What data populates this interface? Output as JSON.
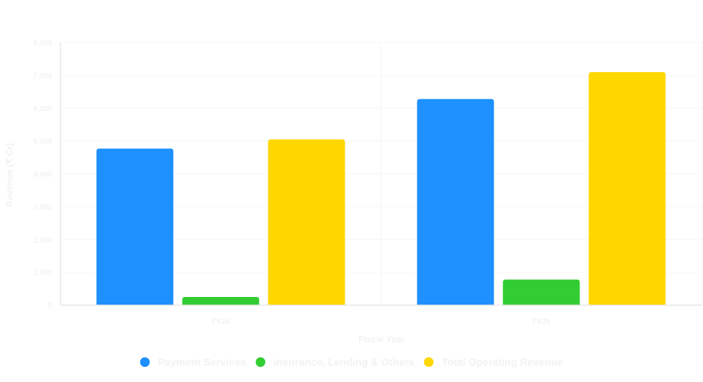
{
  "chart_data": {
    "type": "bar",
    "title": "",
    "xlabel": "Fiscal Year",
    "ylabel": "Revenue (₹ Cr)",
    "categories": [
      "FY24",
      "FY25"
    ],
    "ylim": [
      0,
      8000
    ],
    "yticks": [
      "0",
      "1,000",
      "2,000",
      "3,000",
      "4,000",
      "5,000",
      "6,000",
      "7,000",
      "8,000"
    ],
    "grid": true,
    "legend_position": "bottom",
    "series": [
      {
        "name": "Payment Services",
        "color": "#1e90ff",
        "values": [
          4770,
          6280
        ]
      },
      {
        "name": "Insurance, Lending & Others",
        "color": "#32cd32",
        "values": [
          250,
          780
        ]
      },
      {
        "name": "Total Operating Revenue",
        "color": "#ffd700",
        "values": [
          5050,
          7100
        ]
      }
    ]
  }
}
